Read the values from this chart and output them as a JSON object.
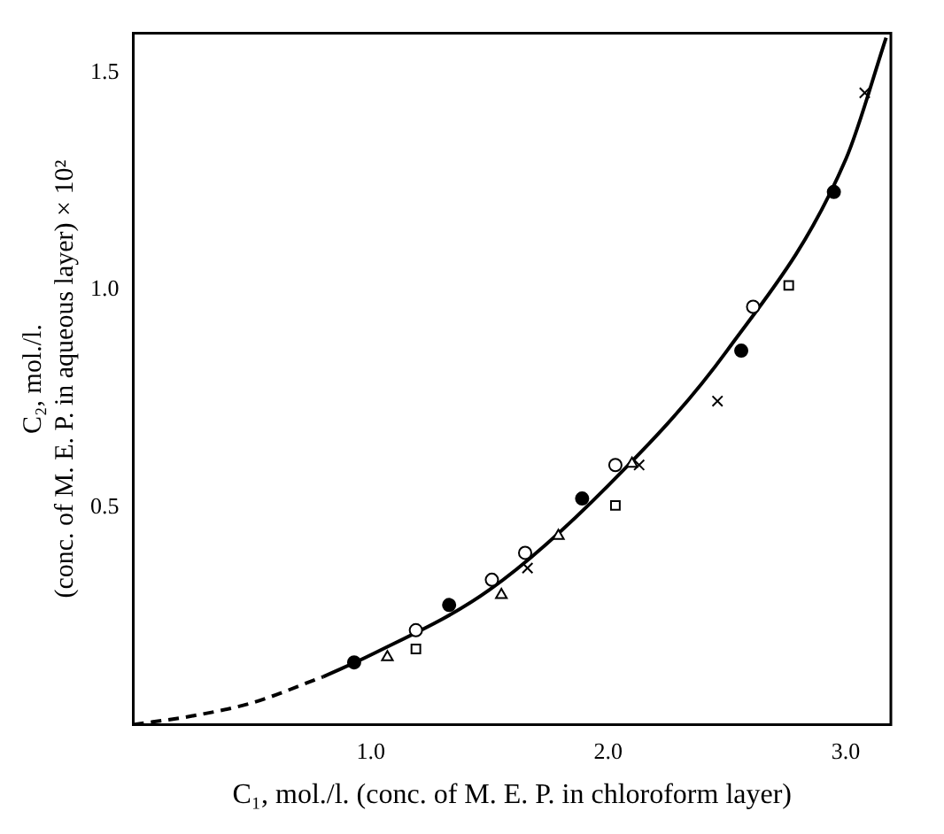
{
  "chart_data": {
    "type": "scatter",
    "xlabel": "C₁, mol./l. (conc. of M. E. P. in chloroform layer)",
    "ylabel": "C₂, mol./l. (conc. of M. E. P. in aqueous layer) × 10²",
    "xlim": [
      0,
      3.19
    ],
    "ylim": [
      0,
      1.59
    ],
    "xticks": [
      {
        "value": 1,
        "label": "1.0"
      },
      {
        "value": 2,
        "label": "2.0"
      },
      {
        "value": 3,
        "label": "3.0"
      }
    ],
    "yticks": [
      {
        "value": 0.5,
        "label": "0.5"
      },
      {
        "value": 1,
        "label": "1.0"
      },
      {
        "value": 1.5,
        "label": "1.5"
      }
    ],
    "grid": false,
    "legend": false,
    "series": [
      {
        "type": "scatter",
        "marker": "circle",
        "color": "#000000",
        "x": [
          0.93,
          1.33,
          1.89,
          2.56,
          2.95
        ],
        "values": [
          0.143,
          0.275,
          0.52,
          0.86,
          1.225
        ]
      },
      {
        "type": "scatter",
        "marker": "circle",
        "color": "#ffffff",
        "x": [
          1.19,
          1.51,
          1.65,
          2.03,
          2.61
        ],
        "values": [
          0.217,
          0.333,
          0.395,
          0.597,
          0.961
        ]
      },
      {
        "type": "scatter",
        "marker": "cross",
        "color": "#000000",
        "x": [
          1.66,
          2.13,
          2.46,
          3.08
        ],
        "values": [
          0.36,
          0.597,
          0.744,
          1.453
        ]
      },
      {
        "type": "scatter",
        "marker": "triangle",
        "color": "#000000",
        "x": [
          1.07,
          1.55,
          1.79,
          2.1
        ],
        "values": [
          0.155,
          0.298,
          0.434,
          0.6
        ]
      },
      {
        "type": "scatter",
        "marker": "square",
        "color": "#000000",
        "x": [
          1.19,
          2.03,
          2.76
        ],
        "values": [
          0.174,
          0.504,
          1.01
        ]
      },
      {
        "type": "line",
        "line_style": "dashed",
        "marker": "none",
        "color": "#000000",
        "x": [
          0,
          0.25,
          0.5,
          0.8
        ],
        "values": [
          0,
          0.02,
          0.05,
          0.11
        ]
      },
      {
        "type": "line",
        "line_style": "solid",
        "marker": "none",
        "color": "#000000",
        "x": [
          0.8,
          1,
          1.5,
          2,
          2.5,
          3,
          3.17
        ],
        "values": [
          0.11,
          0.16,
          0.31,
          0.55,
          0.86,
          1.3,
          1.58
        ]
      }
    ]
  }
}
